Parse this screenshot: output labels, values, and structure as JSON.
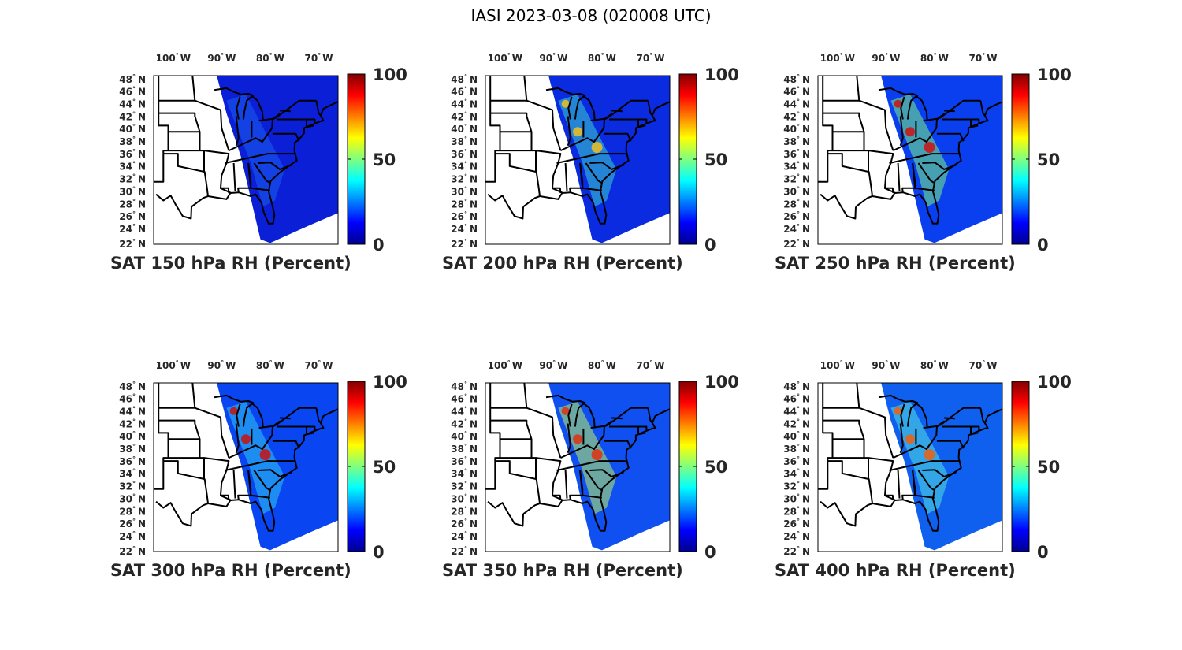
{
  "figure": {
    "title": "IASI 2023-03-08 (020008 UTC)"
  },
  "axes": {
    "lon_labels": [
      "100",
      "90",
      "80",
      "70"
    ],
    "lon_hemisphere": "W",
    "lat_labels": [
      "48",
      "46",
      "44",
      "42",
      "40",
      "38",
      "36",
      "34",
      "32",
      "30",
      "28",
      "26",
      "24",
      "22"
    ],
    "lat_hemisphere": "N",
    "degree_symbol": "°"
  },
  "colorbar": {
    "colormap": "jet",
    "tick_labels": [
      "100",
      "50",
      "0"
    ],
    "range": [
      0,
      100
    ],
    "stops": [
      "#00008f",
      "#0000ff",
      "#0080ff",
      "#00ffff",
      "#80ff80",
      "#ffff00",
      "#ff8000",
      "#ff0000",
      "#800000"
    ]
  },
  "chart_data": [
    {
      "type": "heatmap",
      "title": "SAT 150 hPa RH (Percent)",
      "units": "Percent",
      "level_hpa": 150,
      "clim": [
        0,
        100
      ],
      "mean_rh": 8,
      "moist_band_rh": 12,
      "moist_spots_rh": [],
      "colors": {
        "swath": "#0a1fd6",
        "band": "#1e5cf0",
        "spot": "#2a70ff"
      }
    },
    {
      "type": "heatmap",
      "title": "SAT 200 hPa RH (Percent)",
      "units": "Percent",
      "level_hpa": 200,
      "clim": [
        0,
        100
      ],
      "mean_rh": 12,
      "moist_band_rh": 45,
      "moist_spots_rh": [
        75,
        60,
        55
      ],
      "colors": {
        "swath": "#0a2be0",
        "band": "#3ad0d0",
        "spot": "#f0c020"
      }
    },
    {
      "type": "heatmap",
      "title": "SAT 250 hPa RH (Percent)",
      "units": "Percent",
      "level_hpa": 250,
      "clim": [
        0,
        100
      ],
      "mean_rh": 18,
      "moist_band_rh": 55,
      "moist_spots_rh": [
        95,
        80,
        65
      ],
      "colors": {
        "swath": "#0a3ff0",
        "band": "#7af080",
        "spot": "#d01010"
      }
    },
    {
      "type": "heatmap",
      "title": "SAT 300 hPa RH (Percent)",
      "units": "Percent",
      "level_hpa": 300,
      "clim": [
        0,
        100
      ],
      "mean_rh": 22,
      "moist_band_rh": 50,
      "moist_spots_rh": [
        95,
        85,
        60
      ],
      "colors": {
        "swath": "#0a45f2",
        "band": "#30c8f0",
        "spot": "#cc1010"
      }
    },
    {
      "type": "heatmap",
      "title": "SAT 350 hPa RH (Percent)",
      "units": "Percent",
      "level_hpa": 350,
      "clim": [
        0,
        100
      ],
      "mean_rh": 25,
      "moist_band_rh": 60,
      "moist_spots_rh": [
        90,
        80,
        70
      ],
      "colors": {
        "swath": "#1050f0",
        "band": "#b8f060",
        "spot": "#e03010"
      }
    },
    {
      "type": "heatmap",
      "title": "SAT 400 hPa RH (Percent)",
      "units": "Percent",
      "level_hpa": 400,
      "clim": [
        0,
        100
      ],
      "mean_rh": 30,
      "moist_band_rh": 55,
      "moist_spots_rh": [
        85,
        75,
        65
      ],
      "colors": {
        "swath": "#1060f0",
        "band": "#50e0e0",
        "spot": "#f06010"
      }
    }
  ]
}
